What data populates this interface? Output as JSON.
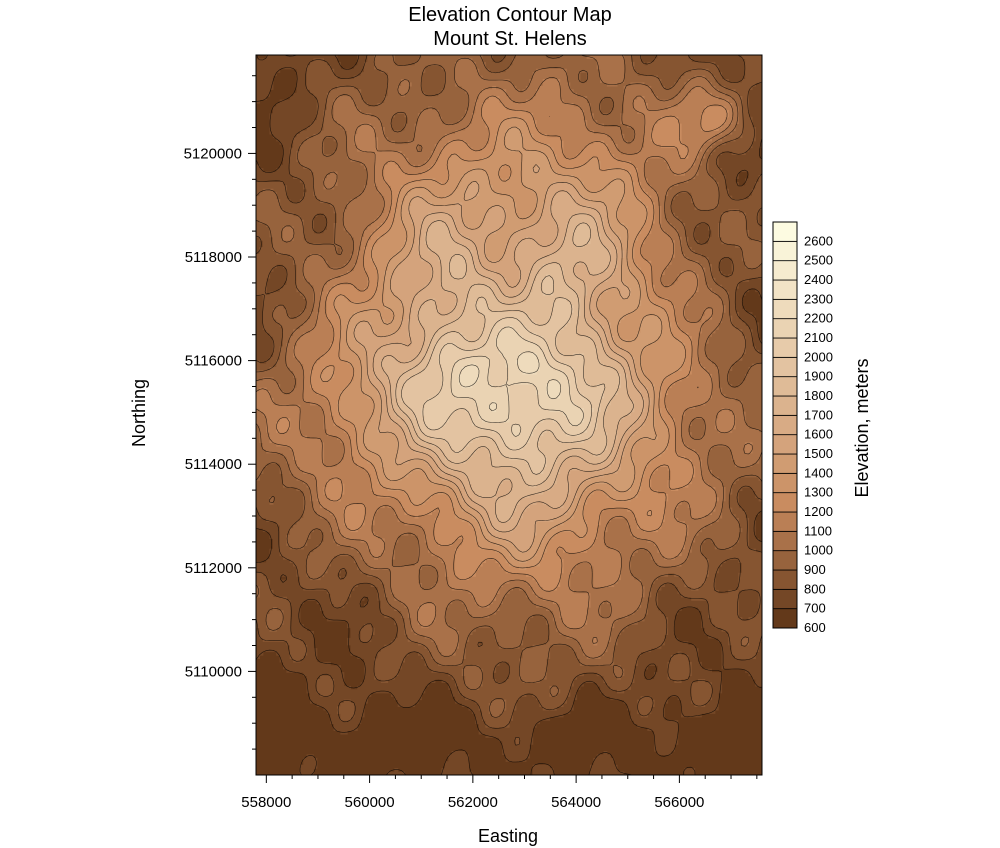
{
  "chart_data": {
    "type": "contour",
    "title": "Elevation Contour Map",
    "subtitle": "Mount St. Helens",
    "xlabel": "Easting",
    "ylabel": "Northing",
    "xlim": [
      557800,
      567600
    ],
    "ylim": [
      5108000,
      5121900
    ],
    "x_ticks": [
      558000,
      560000,
      562000,
      564000,
      566000
    ],
    "y_ticks": [
      5110000,
      5112000,
      5114000,
      5116000,
      5118000,
      5120000
    ],
    "colorbar": {
      "label": "Elevation, meters",
      "min": 600,
      "max": 2700,
      "levels": [
        600,
        700,
        800,
        900,
        1000,
        1100,
        1200,
        1300,
        1400,
        1500,
        1600,
        1700,
        1800,
        1900,
        2000,
        2100,
        2200,
        2300,
        2400,
        2500,
        2600
      ],
      "color_low": "#5a3214",
      "color_mid": "#c88a5e",
      "color_high": "#ffffe6"
    },
    "summit": {
      "easting": 562700,
      "northing": 5116100
    },
    "crater_opening": "north"
  }
}
